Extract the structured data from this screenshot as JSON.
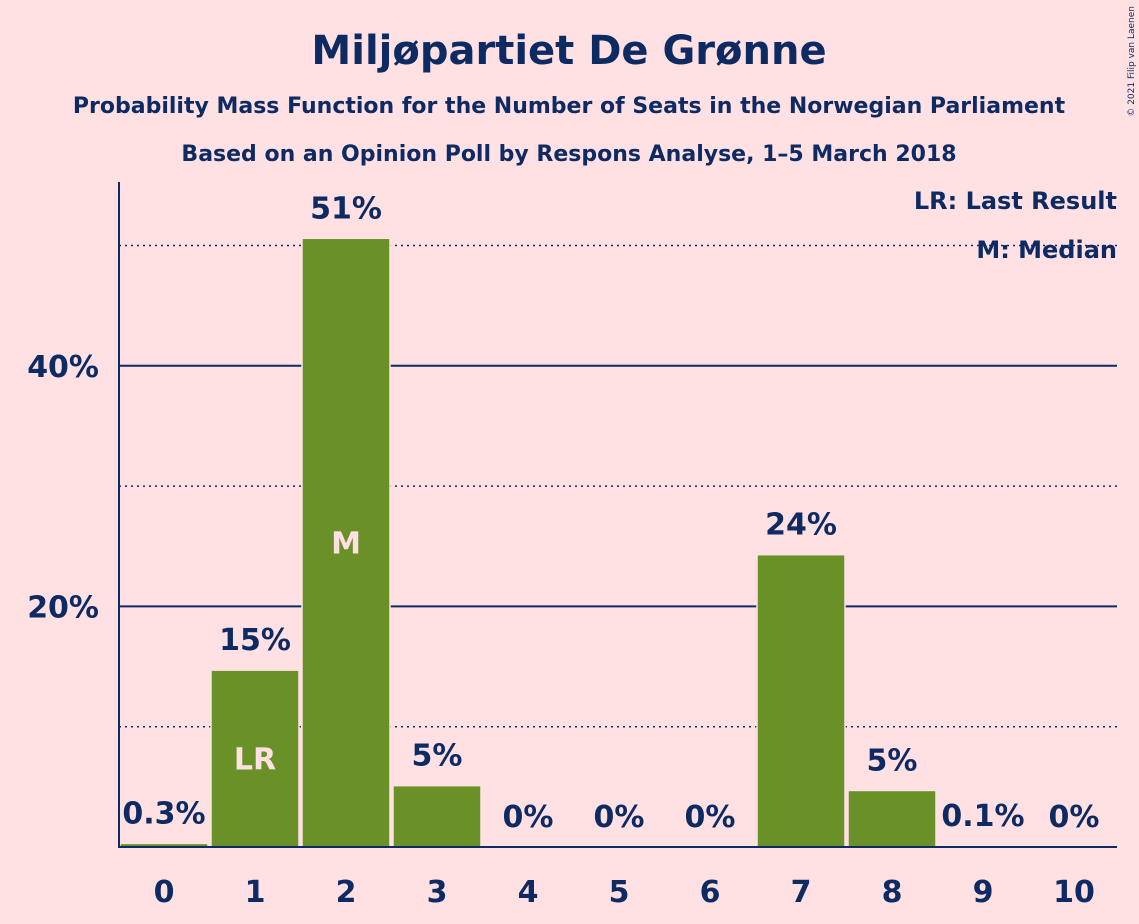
{
  "chart_data": {
    "type": "bar",
    "title": "Miljøpartiet De Grønne",
    "subtitle": "Probability Mass Function for the Number of Seats in the Norwegian Parliament",
    "subtitle2": "Based on an Opinion Poll by Respons Analyse, 1–5 March 2018",
    "categories": [
      "0",
      "1",
      "2",
      "3",
      "4",
      "5",
      "6",
      "7",
      "8",
      "9",
      "10"
    ],
    "values": [
      0.3,
      14.7,
      50.6,
      5.1,
      0,
      0,
      0,
      24.3,
      4.7,
      0.1,
      0
    ],
    "data_labels": [
      "0.3%",
      "15%",
      "51%",
      "5%",
      "0%",
      "0%",
      "0%",
      "24%",
      "5%",
      "0.1%",
      "0%"
    ],
    "bar_markers": {
      "1": "LR",
      "2": "M"
    },
    "yticks": [
      {
        "value": 20,
        "label": "20%"
      },
      {
        "value": 40,
        "label": "40%"
      }
    ],
    "minor_gridlines": [
      10,
      30,
      50
    ],
    "ylim": [
      0,
      55
    ],
    "legend": {
      "items": [
        "LR: Last Result",
        "M: Median"
      ],
      "placement": "top-right"
    },
    "bar_color": "#6A9128",
    "axis_color": "#0D2A63",
    "background": "#FFE1E4",
    "copyright": "© 2021 Filip van Laenen"
  }
}
